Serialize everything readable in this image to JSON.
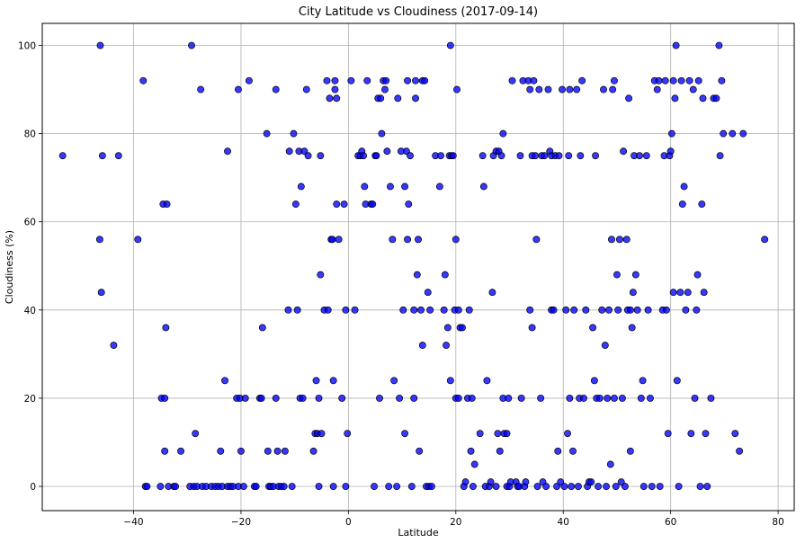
{
  "chart_data": {
    "type": "scatter",
    "title": "City Latitude vs Cloudiness (2017-09-14)",
    "xlabel": "Latitude",
    "ylabel": "Cloudiness (%)",
    "xlim": [
      -57,
      83
    ],
    "ylim": [
      -5.5,
      105
    ],
    "xticks": [
      -40,
      -20,
      0,
      20,
      40,
      60,
      80
    ],
    "yticks": [
      0,
      20,
      40,
      60,
      80,
      100
    ],
    "grid": true,
    "marker_color": "#0000ff",
    "marker_edge_color": "#000000",
    "points": [
      [
        -53.2,
        75
      ],
      [
        -46.2,
        100
      ],
      [
        -45.8,
        75
      ],
      [
        -46.3,
        56
      ],
      [
        -46,
        44
      ],
      [
        -43.7,
        32
      ],
      [
        -42.8,
        75
      ],
      [
        -39.2,
        56
      ],
      [
        -38.2,
        92
      ],
      [
        -37.8,
        0
      ],
      [
        -37.5,
        0
      ],
      [
        -35,
        0
      ],
      [
        -34.8,
        20
      ],
      [
        -34.5,
        64
      ],
      [
        -34.2,
        20
      ],
      [
        -34.2,
        8
      ],
      [
        -34,
        36
      ],
      [
        -33.8,
        64
      ],
      [
        -33.5,
        0
      ],
      [
        -32.5,
        0
      ],
      [
        -32.2,
        0
      ],
      [
        -31.2,
        8
      ],
      [
        -29.5,
        0
      ],
      [
        -29.2,
        100
      ],
      [
        -28.8,
        0
      ],
      [
        -28.5,
        12
      ],
      [
        -28.2,
        0
      ],
      [
        -27.5,
        90
      ],
      [
        -27.2,
        0
      ],
      [
        -26.5,
        0
      ],
      [
        -25.5,
        0
      ],
      [
        -24.8,
        0
      ],
      [
        -24.2,
        0
      ],
      [
        -23.8,
        8
      ],
      [
        -23.5,
        0
      ],
      [
        -23,
        24
      ],
      [
        -22.5,
        76
      ],
      [
        -22.5,
        0
      ],
      [
        -22,
        0
      ],
      [
        -21.5,
        0
      ],
      [
        -20.8,
        20
      ],
      [
        -20.5,
        90
      ],
      [
        -20.5,
        0
      ],
      [
        -20.2,
        20
      ],
      [
        -20,
        8
      ],
      [
        -19.5,
        0
      ],
      [
        -19.2,
        20
      ],
      [
        -18.5,
        92
      ],
      [
        -17.5,
        0
      ],
      [
        -17.2,
        0
      ],
      [
        -16.5,
        20
      ],
      [
        -16.2,
        20
      ],
      [
        -16,
        36
      ],
      [
        -15.2,
        80
      ],
      [
        -15,
        8
      ],
      [
        -14.8,
        0
      ],
      [
        -14.5,
        0
      ],
      [
        -14,
        0
      ],
      [
        -13.5,
        20
      ],
      [
        -13.5,
        90
      ],
      [
        -13.2,
        8
      ],
      [
        -13,
        0
      ],
      [
        -12.5,
        0
      ],
      [
        -12,
        0
      ],
      [
        -11.8,
        8
      ],
      [
        -11.2,
        40
      ],
      [
        -11,
        76
      ],
      [
        -10.5,
        0
      ],
      [
        -10.2,
        80
      ],
      [
        -9.8,
        64
      ],
      [
        -9.5,
        40
      ],
      [
        -9.2,
        76
      ],
      [
        -9,
        20
      ],
      [
        -8.8,
        68
      ],
      [
        -8.5,
        20
      ],
      [
        -8.2,
        76
      ],
      [
        -7.8,
        90
      ],
      [
        -7.5,
        75
      ],
      [
        -6.5,
        8
      ],
      [
        -6.2,
        12
      ],
      [
        -6,
        24
      ],
      [
        -5.8,
        12
      ],
      [
        -5.5,
        20
      ],
      [
        -5.5,
        0
      ],
      [
        -5.2,
        75
      ],
      [
        -5.2,
        48
      ],
      [
        -5,
        12
      ],
      [
        -4.5,
        40
      ],
      [
        -4,
        92
      ],
      [
        -3.8,
        40
      ],
      [
        -3.5,
        88
      ],
      [
        -3.2,
        56
      ],
      [
        -3,
        56
      ],
      [
        -2.8,
        0
      ],
      [
        -2.8,
        24
      ],
      [
        -2.5,
        90
      ],
      [
        -2.5,
        92
      ],
      [
        -2.2,
        88
      ],
      [
        -2.2,
        64
      ],
      [
        -1.8,
        56
      ],
      [
        -1.2,
        20
      ],
      [
        -0.8,
        64
      ],
      [
        -0.5,
        40
      ],
      [
        -0.5,
        0
      ],
      [
        -0.2,
        12
      ],
      [
        0.5,
        92
      ],
      [
        1.2,
        40
      ],
      [
        1.8,
        75
      ],
      [
        2.2,
        75
      ],
      [
        2.5,
        76
      ],
      [
        2.8,
        75
      ],
      [
        3,
        68
      ],
      [
        3.2,
        64
      ],
      [
        3.5,
        92
      ],
      [
        4.2,
        64
      ],
      [
        4.5,
        64
      ],
      [
        4.8,
        0
      ],
      [
        5,
        75
      ],
      [
        5.2,
        75
      ],
      [
        5.5,
        88
      ],
      [
        5.8,
        20
      ],
      [
        6,
        88
      ],
      [
        6.2,
        80
      ],
      [
        6.5,
        92
      ],
      [
        6.8,
        90
      ],
      [
        7,
        92
      ],
      [
        7.2,
        76
      ],
      [
        7.5,
        0
      ],
      [
        7.8,
        68
      ],
      [
        8.2,
        56
      ],
      [
        8.5,
        24
      ],
      [
        9,
        0
      ],
      [
        9.2,
        88
      ],
      [
        9.5,
        20
      ],
      [
        9.8,
        76
      ],
      [
        10.2,
        40
      ],
      [
        10.5,
        68
      ],
      [
        10.5,
        12
      ],
      [
        10.8,
        76
      ],
      [
        11,
        92
      ],
      [
        11,
        56
      ],
      [
        11.2,
        64
      ],
      [
        11.5,
        75
      ],
      [
        11.8,
        0
      ],
      [
        12.2,
        20
      ],
      [
        12.2,
        40
      ],
      [
        12.5,
        92
      ],
      [
        12.5,
        88
      ],
      [
        12.8,
        48
      ],
      [
        13,
        56
      ],
      [
        13.2,
        8
      ],
      [
        13.5,
        40
      ],
      [
        13.8,
        32
      ],
      [
        13.8,
        92
      ],
      [
        14.2,
        92
      ],
      [
        14.5,
        0
      ],
      [
        14.8,
        44
      ],
      [
        15,
        0
      ],
      [
        15.2,
        40
      ],
      [
        15.5,
        0
      ],
      [
        16.2,
        75
      ],
      [
        17,
        68
      ],
      [
        17.2,
        75
      ],
      [
        17.8,
        40
      ],
      [
        18,
        48
      ],
      [
        18.2,
        32
      ],
      [
        18.5,
        36
      ],
      [
        18.8,
        75
      ],
      [
        19,
        100
      ],
      [
        19,
        24
      ],
      [
        19.2,
        75
      ],
      [
        19.5,
        75
      ],
      [
        19.8,
        40
      ],
      [
        20,
        20
      ],
      [
        20,
        56
      ],
      [
        20.2,
        90
      ],
      [
        20.5,
        40
      ],
      [
        20.5,
        20
      ],
      [
        20.8,
        36
      ],
      [
        21.2,
        36
      ],
      [
        21.5,
        0
      ],
      [
        21.8,
        1
      ],
      [
        22.2,
        20
      ],
      [
        22.5,
        40
      ],
      [
        22.8,
        8
      ],
      [
        23,
        20
      ],
      [
        23.2,
        0
      ],
      [
        23.5,
        5
      ],
      [
        24.5,
        12
      ],
      [
        25,
        75
      ],
      [
        25.2,
        68
      ],
      [
        25.5,
        0
      ],
      [
        25.8,
        24
      ],
      [
        26.2,
        0
      ],
      [
        26.5,
        1
      ],
      [
        26.8,
        44
      ],
      [
        27,
        75
      ],
      [
        27.5,
        76
      ],
      [
        27.5,
        0
      ],
      [
        27.8,
        12
      ],
      [
        28,
        76
      ],
      [
        28.2,
        8
      ],
      [
        28.5,
        75
      ],
      [
        28.8,
        20
      ],
      [
        28.8,
        80
      ],
      [
        29,
        12
      ],
      [
        29.5,
        12
      ],
      [
        29.8,
        20
      ],
      [
        29.5,
        0
      ],
      [
        30,
        0
      ],
      [
        30.2,
        1
      ],
      [
        30.5,
        92
      ],
      [
        31.2,
        1
      ],
      [
        31.5,
        0
      ],
      [
        31.8,
        0
      ],
      [
        32,
        75
      ],
      [
        32.2,
        20
      ],
      [
        32.5,
        92
      ],
      [
        32.8,
        0
      ],
      [
        33,
        1
      ],
      [
        33.5,
        92
      ],
      [
        33.8,
        40
      ],
      [
        33.8,
        90
      ],
      [
        34.2,
        75
      ],
      [
        34.2,
        36
      ],
      [
        34.5,
        92
      ],
      [
        34.8,
        75
      ],
      [
        35,
        56
      ],
      [
        35.2,
        0
      ],
      [
        35.5,
        90
      ],
      [
        35.8,
        20
      ],
      [
        36,
        75
      ],
      [
        36.2,
        1
      ],
      [
        36.5,
        75
      ],
      [
        36.8,
        0
      ],
      [
        37.2,
        90
      ],
      [
        37.5,
        76
      ],
      [
        37.8,
        75
      ],
      [
        37.8,
        40
      ],
      [
        38.2,
        40
      ],
      [
        38.5,
        75
      ],
      [
        38.8,
        0
      ],
      [
        39,
        8
      ],
      [
        39.2,
        75
      ],
      [
        39.5,
        1
      ],
      [
        39.8,
        90
      ],
      [
        40.2,
        0
      ],
      [
        40.5,
        40
      ],
      [
        40.8,
        12
      ],
      [
        41,
        75
      ],
      [
        41.2,
        90
      ],
      [
        41.2,
        20
      ],
      [
        41.5,
        0
      ],
      [
        41.8,
        8
      ],
      [
        42,
        40
      ],
      [
        42.5,
        90
      ],
      [
        42.8,
        0
      ],
      [
        43,
        20
      ],
      [
        43.2,
        75
      ],
      [
        43.5,
        92
      ],
      [
        43.8,
        20
      ],
      [
        44.2,
        40
      ],
      [
        44.5,
        0
      ],
      [
        44.8,
        1
      ],
      [
        45.2,
        1
      ],
      [
        45.5,
        36
      ],
      [
        45.8,
        24
      ],
      [
        46,
        75
      ],
      [
        46.2,
        20
      ],
      [
        46.5,
        0
      ],
      [
        46.8,
        20
      ],
      [
        47.2,
        40
      ],
      [
        47.5,
        90
      ],
      [
        47.8,
        32
      ],
      [
        48,
        0
      ],
      [
        48.2,
        20
      ],
      [
        48.5,
        40
      ],
      [
        48.8,
        5
      ],
      [
        49,
        56
      ],
      [
        49.2,
        90
      ],
      [
        49.5,
        20
      ],
      [
        49.5,
        92
      ],
      [
        49.8,
        0
      ],
      [
        50,
        48
      ],
      [
        50.2,
        40
      ],
      [
        50.5,
        56
      ],
      [
        50.8,
        1
      ],
      [
        51,
        20
      ],
      [
        51.2,
        76
      ],
      [
        51.5,
        0
      ],
      [
        51.8,
        56
      ],
      [
        52,
        40
      ],
      [
        52.2,
        88
      ],
      [
        52.5,
        40
      ],
      [
        52.5,
        8
      ],
      [
        52.8,
        36
      ],
      [
        53,
        44
      ],
      [
        53.2,
        75
      ],
      [
        53.5,
        48
      ],
      [
        53.8,
        40
      ],
      [
        54.2,
        75
      ],
      [
        54.5,
        20
      ],
      [
        54.8,
        24
      ],
      [
        55,
        0
      ],
      [
        55.5,
        75
      ],
      [
        55.8,
        40
      ],
      [
        56.2,
        20
      ],
      [
        56.5,
        0
      ],
      [
        57,
        92
      ],
      [
        57.5,
        90
      ],
      [
        57.8,
        92
      ],
      [
        58,
        0
      ],
      [
        58.5,
        40
      ],
      [
        58.8,
        75
      ],
      [
        59,
        92
      ],
      [
        59.2,
        40
      ],
      [
        59.5,
        12
      ],
      [
        59.8,
        75
      ],
      [
        60,
        76
      ],
      [
        60.2,
        80
      ],
      [
        60.5,
        44
      ],
      [
        60.5,
        92
      ],
      [
        60.8,
        88
      ],
      [
        61,
        100
      ],
      [
        61.2,
        24
      ],
      [
        61.5,
        0
      ],
      [
        61.8,
        44
      ],
      [
        62,
        92
      ],
      [
        62.2,
        64
      ],
      [
        62.5,
        68
      ],
      [
        62.8,
        40
      ],
      [
        63.2,
        44
      ],
      [
        63.5,
        92
      ],
      [
        63.8,
        12
      ],
      [
        64.2,
        90
      ],
      [
        64.5,
        20
      ],
      [
        64.8,
        40
      ],
      [
        65,
        48
      ],
      [
        65.2,
        92
      ],
      [
        65.5,
        0
      ],
      [
        65.8,
        64
      ],
      [
        66,
        88
      ],
      [
        66.2,
        44
      ],
      [
        66.5,
        12
      ],
      [
        66.8,
        0
      ],
      [
        67.5,
        20
      ],
      [
        68,
        88
      ],
      [
        68.5,
        88
      ],
      [
        69,
        100
      ],
      [
        69.2,
        75
      ],
      [
        69.5,
        92
      ],
      [
        69.8,
        80
      ],
      [
        71.5,
        80
      ],
      [
        72,
        12
      ],
      [
        72.8,
        8
      ],
      [
        73.5,
        80
      ],
      [
        77.5,
        56
      ]
    ]
  }
}
